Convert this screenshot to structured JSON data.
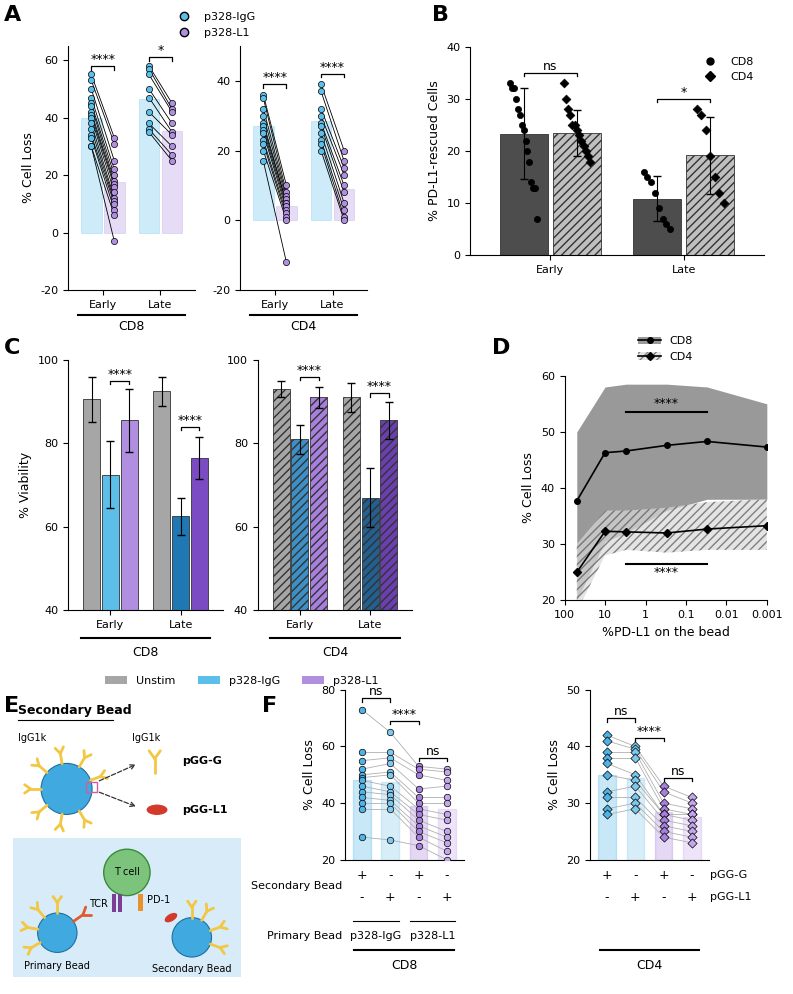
{
  "chart_data": [
    {
      "panel": "A",
      "type": "paired_dot",
      "group_label": "CD8",
      "ylabel": "% Cell Loss",
      "categories": [
        "Early",
        "Late"
      ],
      "ylim": [
        -20,
        65
      ],
      "yticks": [
        -20,
        0,
        20,
        40,
        60
      ],
      "legend": "upper center",
      "series": [
        {
          "name": "p328-IgG",
          "color": "#5bbfea",
          "values": [
            40,
            46.5
          ],
          "points": [
            [
              55,
              53,
              50,
              47,
              45,
              44,
              42,
              41,
              40,
              38,
              36,
              34,
              33,
              30,
              30
            ],
            [
              58,
              57,
              55,
              50,
              47,
              42,
              38,
              36,
              35
            ]
          ]
        },
        {
          "name": "p328-L1",
          "color": "#b08ee0",
          "values": [
            17.5,
            35.5
          ],
          "points": [
            [
              33,
              31,
              25,
              22,
              20,
              18,
              17,
              16,
              14,
              12,
              11,
              10,
              8,
              6,
              -3
            ],
            [
              45,
              43,
              42,
              38,
              35,
              34,
              30,
              27,
              25
            ]
          ]
        }
      ],
      "annotations": [
        {
          "category": "Early",
          "between": [
            "p328-IgG",
            "p328-L1"
          ],
          "text": "****",
          "y": 58
        },
        {
          "category": "Late",
          "between": [
            "p328-IgG",
            "p328-L1"
          ],
          "text": "*",
          "y": 61
        }
      ]
    },
    {
      "type": "paired_dot",
      "group_label": "CD4",
      "categories": [
        "Early",
        "Late"
      ],
      "ylim": [
        -20,
        50
      ],
      "yticks": [
        -20,
        0,
        20,
        40
      ],
      "series": [
        {
          "name": "p328-IgG",
          "color": "#5bbfea",
          "values": [
            27,
            28.5
          ],
          "points": [
            [
              36,
              35,
              32,
              30,
              28,
              27,
              26,
              25,
              23,
              22,
              20,
              17
            ],
            [
              39,
              37,
              32,
              30,
              28,
              27,
              25,
              23,
              22,
              20
            ]
          ]
        },
        {
          "name": "p328-L1",
          "color": "#b08ee0",
          "values": [
            4,
            9
          ],
          "points": [
            [
              10,
              8,
              7,
              6,
              5,
              5,
              4,
              3,
              2,
              1,
              0,
              -12
            ],
            [
              20,
              17,
              15,
              13,
              10,
              8,
              5,
              3,
              1,
              0
            ]
          ]
        }
      ],
      "annotations": [
        {
          "category": "Early",
          "between": [
            "p328-IgG",
            "p328-L1"
          ],
          "text": "****",
          "y": 39
        },
        {
          "category": "Late",
          "between": [
            "p328-IgG",
            "p328-L1"
          ],
          "text": "****",
          "y": 42
        }
      ]
    },
    {
      "panel": "B",
      "type": "bar",
      "ylabel": "% PD-L1-rescued Cells",
      "categories": [
        "Early",
        "Late"
      ],
      "ylim": [
        0,
        40
      ],
      "yticks": [
        0,
        10,
        20,
        30,
        40
      ],
      "legend": "upper right",
      "series": [
        {
          "name": "CD8",
          "color": "#4d4d4d",
          "marker": "o",
          "values": [
            23.3,
            10.9
          ],
          "errors": [
            8.7,
            4.3
          ],
          "points": [
            [
              33,
              32,
              32,
              30,
              28,
              27,
              25,
              24,
              22,
              20,
              18,
              14,
              13,
              13,
              7
            ],
            [
              16,
              15,
              14,
              12,
              9,
              7,
              6,
              5
            ]
          ]
        },
        {
          "name": "CD4",
          "color": "#bfbfbf",
          "marker": "D",
          "values": [
            23.5,
            19.2
          ],
          "errors": [
            4.4,
            7.4
          ],
          "points": [
            [
              33,
              30,
              28,
              27,
              25,
              25,
              24,
              23,
              22,
              21,
              20,
              19,
              18
            ],
            [
              28,
              27,
              24,
              19,
              15,
              12,
              10
            ]
          ]
        }
      ],
      "annotations": [
        {
          "category": "Early",
          "between": [
            "CD8",
            "CD4"
          ],
          "text": "ns",
          "y": 35
        },
        {
          "category": "Late",
          "between": [
            "CD8",
            "CD4"
          ],
          "text": "*",
          "y": 30
        }
      ]
    },
    {
      "panel": "C",
      "type": "bar",
      "group_label": "CD8",
      "ylabel": "% Viability",
      "categories": [
        "Early",
        "Late"
      ],
      "ylim": [
        40,
        100
      ],
      "yticks": [
        40,
        60,
        80,
        100
      ],
      "legend": "upper center",
      "series": [
        {
          "name": "Unstim",
          "colors": [
            "#a6a6a6",
            "#a6a6a6"
          ],
          "values": [
            90.5,
            92.5
          ],
          "errors": [
            5.5,
            3.5
          ]
        },
        {
          "name": "p328-IgG",
          "colors": [
            "#5bbfea",
            "#1f78b4"
          ],
          "values": [
            72.5,
            62.5
          ],
          "errors": [
            8,
            4.5
          ]
        },
        {
          "name": "p328-L1",
          "colors": [
            "#b08ee0",
            "#7b4bc4"
          ],
          "values": [
            85.5,
            76.5
          ],
          "errors": [
            7.5,
            5
          ]
        }
      ],
      "annotations": [
        {
          "category": "Early",
          "between": [
            "p328-IgG",
            "p328-L1"
          ],
          "text": "****",
          "y": 95
        },
        {
          "category": "Late",
          "between": [
            "p328-IgG",
            "p328-L1"
          ],
          "text": "****",
          "y": 84
        }
      ]
    },
    {
      "type": "bar",
      "group_label": "CD4",
      "categories": [
        "Early",
        "Late"
      ],
      "ylim": [
        40,
        100
      ],
      "yticks": [
        40,
        60,
        80,
        100
      ],
      "series": [
        {
          "name": "Unstim",
          "colors": [
            "#a6a6a6",
            "#a6a6a6"
          ],
          "values": [
            93,
            91
          ],
          "errors": [
            2,
            3.5
          ]
        },
        {
          "name": "p328-IgG",
          "colors": [
            "#3d8fc6",
            "#235f8f"
          ],
          "values": [
            81,
            67
          ],
          "errors": [
            3.5,
            7
          ]
        },
        {
          "name": "p328-L1",
          "colors": [
            "#a77fdc",
            "#6a3fb0"
          ],
          "values": [
            91,
            85.5
          ],
          "errors": [
            2.5,
            4.5
          ]
        }
      ],
      "annotations": [
        {
          "category": "Early",
          "between": [
            "p328-IgG",
            "p328-L1"
          ],
          "text": "****",
          "y": 96
        },
        {
          "category": "Late",
          "between": [
            "p328-IgG",
            "p328-L1"
          ],
          "text": "****",
          "y": 92
        }
      ]
    },
    {
      "panel": "D",
      "type": "line",
      "log": "x",
      "xlabel": "%PD-L1 on the bead",
      "ylabel": "% Cell Loss",
      "x": [
        50,
        10,
        3,
        0.3,
        0.03,
        0.001
      ],
      "xlim": [
        100,
        0.001
      ],
      "xticks": [
        100,
        10,
        1,
        0.1,
        0.01,
        0.001
      ],
      "ylim": [
        20,
        60
      ],
      "yticks": [
        20,
        30,
        40,
        50,
        60
      ],
      "legend": "upper center",
      "series": [
        {
          "name": "CD8",
          "color": "#808080",
          "marker": "o",
          "values": [
            37.7,
            46.3,
            46.6,
            47.6,
            48.3,
            47.3
          ],
          "upper": [
            50,
            58,
            58.5,
            58.5,
            58,
            55
          ],
          "lower": [
            20,
            30.5,
            32,
            36,
            38,
            38
          ]
        },
        {
          "name": "CD4",
          "color": "#d9d9d9",
          "marker": "D",
          "values": [
            25,
            32.3,
            32.2,
            32,
            32.7,
            33.3
          ],
          "upper": [
            30,
            36,
            36,
            36.5,
            37.5,
            38
          ],
          "lower": [
            18,
            28,
            29,
            28.5,
            29,
            29
          ]
        }
      ],
      "annotations": [
        {
          "series": "CD8",
          "x_range": [
            3,
            0.03
          ],
          "text": "****",
          "y": 53.5
        },
        {
          "series": "CD4",
          "x_range": [
            3,
            0.03
          ],
          "text": "****",
          "y": 26.5
        }
      ]
    },
    {
      "panel": "F",
      "type": "paired_columns",
      "group_label": "CD8",
      "ylabel": "% Cell Loss",
      "categories": [
        null,
        null,
        null,
        null
      ],
      "ylim": [
        20,
        80
      ],
      "yticks": [
        20,
        40,
        60,
        80
      ],
      "marker": "o",
      "colors": [
        "#4fb3e6",
        "#7cc8ee",
        "#a77fdc",
        "#c4a6ec"
      ],
      "values": [
        48,
        47.5,
        39,
        38
      ],
      "points": [
        [
          73,
          58,
          55,
          52,
          50,
          49,
          48,
          46,
          44,
          42,
          40,
          38,
          28
        ],
        [
          65,
          58,
          56,
          54,
          51,
          50,
          46,
          44,
          43,
          41,
          40,
          38,
          27
        ],
        [
          53,
          52,
          50,
          45,
          42,
          40,
          38,
          36,
          34,
          32,
          30,
          28,
          25
        ],
        [
          52,
          51,
          48,
          46,
          42,
          40,
          36,
          34,
          30,
          28,
          26,
          23,
          20
        ]
      ],
      "table": {
        "rows": [
          [
            "+",
            "-",
            "+",
            "-"
          ],
          [
            "-",
            "+",
            "-",
            "+"
          ]
        ],
        "secondary_label": "Secondary Bead",
        "primary_label": "Primary Bead",
        "primary": [
          "p328-IgG",
          "p328-L1"
        ]
      },
      "annotations": [
        {
          "between": [
            0,
            1
          ],
          "text": "ns",
          "y": 77
        },
        {
          "between": [
            1,
            2
          ],
          "text": "****",
          "y": 69
        },
        {
          "between": [
            2,
            3
          ],
          "text": "ns",
          "y": 56
        }
      ]
    },
    {
      "type": "paired_columns",
      "group_label": "CD4",
      "ylabel": "% Cell Loss",
      "categories": [
        null,
        null,
        null,
        null
      ],
      "ylim": [
        20,
        50
      ],
      "yticks": [
        20,
        30,
        40,
        50
      ],
      "marker": "D",
      "colors": [
        "#4fb3e6",
        "#7cc8ee",
        "#a77fdc",
        "#c4a6ec"
      ],
      "values": [
        35,
        34.5,
        28.5,
        27.5
      ],
      "points": [
        [
          42,
          41,
          39,
          38,
          37,
          35,
          32,
          31,
          29,
          28
        ],
        [
          40,
          39.5,
          39,
          38,
          35,
          34,
          33,
          31,
          30,
          29
        ],
        [
          33,
          32,
          30,
          29,
          28,
          28,
          27,
          26,
          25,
          24
        ],
        [
          31,
          30,
          29,
          28,
          28,
          27,
          26,
          25,
          24,
          23
        ]
      ],
      "table": {
        "rows": [
          [
            "+",
            "-",
            "+",
            "-"
          ],
          [
            "-",
            "+",
            "-",
            "+"
          ]
        ],
        "row_labels": [
          "pGG-G",
          "pGG-L1"
        ]
      },
      "annotations": [
        {
          "between": [
            0,
            1
          ],
          "text": "ns",
          "y": 45
        },
        {
          "between": [
            1,
            2
          ],
          "text": "****",
          "y": 41.5
        },
        {
          "between": [
            2,
            3
          ],
          "text": "ns",
          "y": 34.5
        }
      ]
    }
  ],
  "diagram": {
    "panel": "E",
    "title": "Secondary Bead",
    "bead_antibody": "IgG1k",
    "inset": [
      {
        "molecule": "IgG1k",
        "label": "pGG-G"
      },
      {
        "label": "pGG-L1"
      }
    ],
    "cell": "T cell",
    "receptors": [
      "TCR",
      "PD-1"
    ],
    "beads": [
      "Primary Bead",
      "Secondary Bead"
    ]
  }
}
